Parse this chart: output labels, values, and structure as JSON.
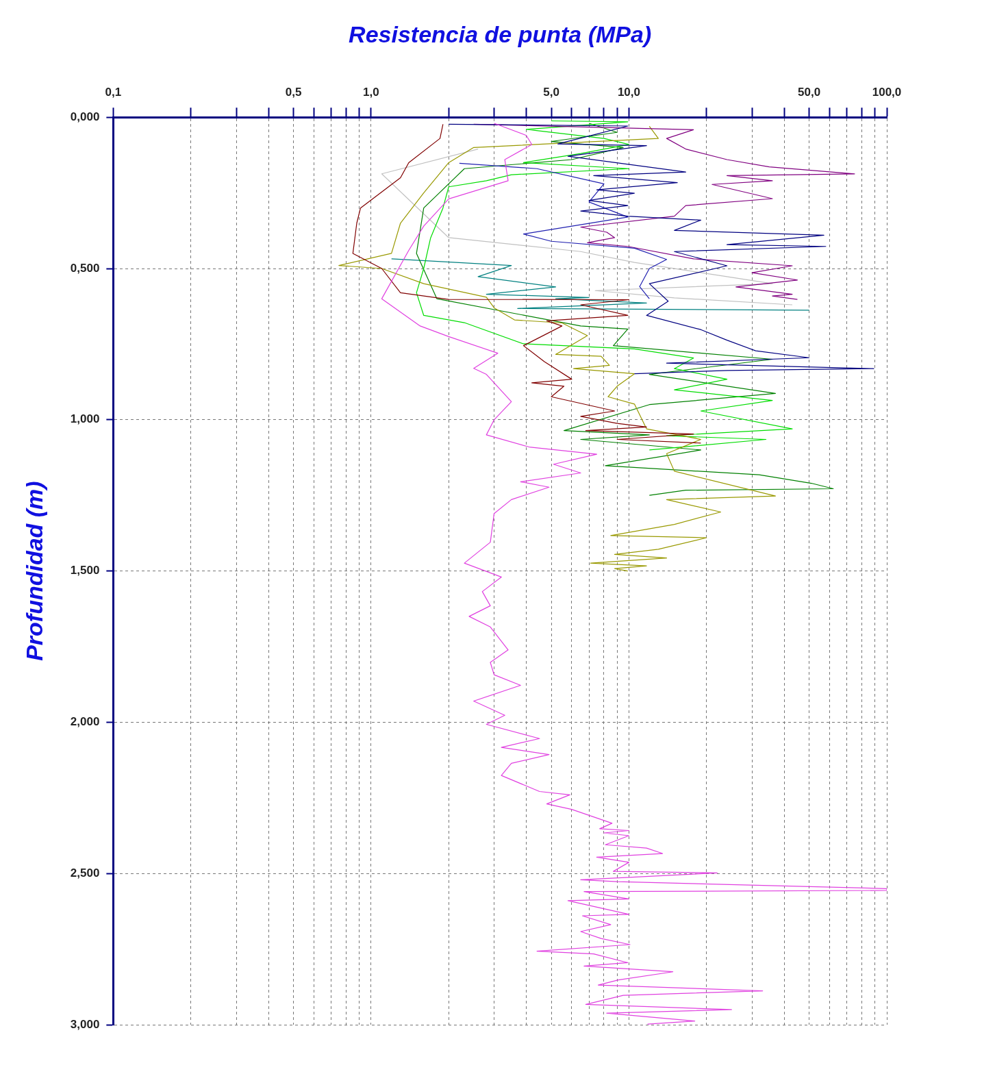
{
  "chart_data": {
    "type": "line",
    "xlabel": "Resistencia de punta (MPa)",
    "ylabel": "Profundidad (m)",
    "xlim": [
      0.1,
      100
    ],
    "ylim": [
      3,
      0
    ],
    "xticks": [
      {
        "value": 0.1,
        "label": "0,1"
      },
      {
        "value": 0.2,
        "label": null
      },
      {
        "value": 0.3,
        "label": null
      },
      {
        "value": 0.4,
        "label": null
      },
      {
        "value": 0.5,
        "label": "0,5"
      },
      {
        "value": 0.6,
        "label": null
      },
      {
        "value": 0.7,
        "label": null
      },
      {
        "value": 0.8,
        "label": null
      },
      {
        "value": 0.9,
        "label": null
      },
      {
        "value": 1,
        "label": "1,0"
      },
      {
        "value": 2,
        "label": null
      },
      {
        "value": 3,
        "label": null
      },
      {
        "value": 4,
        "label": null
      },
      {
        "value": 5,
        "label": "5,0"
      },
      {
        "value": 6,
        "label": null
      },
      {
        "value": 7,
        "label": null
      },
      {
        "value": 8,
        "label": null
      },
      {
        "value": 9,
        "label": null
      },
      {
        "value": 10,
        "label": "10,0"
      },
      {
        "value": 20,
        "label": null
      },
      {
        "value": 30,
        "label": null
      },
      {
        "value": 40,
        "label": null
      },
      {
        "value": 50,
        "label": "50,0"
      },
      {
        "value": 60,
        "label": null
      },
      {
        "value": 70,
        "label": null
      },
      {
        "value": 80,
        "label": null
      },
      {
        "value": 90,
        "label": null
      },
      {
        "value": 100,
        "label": "100,0"
      }
    ],
    "yticks": [
      {
        "value": 0,
        "label": "0,000"
      },
      {
        "value": 0.5,
        "label": "0,500"
      },
      {
        "value": 1,
        "label": "1,000"
      },
      {
        "value": 1.5,
        "label": "1,500"
      },
      {
        "value": 2,
        "label": "2,000"
      },
      {
        "value": 2.5,
        "label": "2,500"
      },
      {
        "value": 3,
        "label": "3,000"
      }
    ],
    "grid": true,
    "log": "x",
    "marker": "none",
    "line_style": "solid",
    "series": [
      {
        "color": "#e040e0",
        "x": [
          3,
          4,
          4.2,
          3.3,
          3.4,
          2,
          1.6,
          1.4,
          1.1,
          1.55,
          2,
          3.1,
          2.5,
          2.8,
          3.5,
          3,
          2.8,
          4.1,
          7.5,
          5.1,
          6.5,
          3.8,
          4.9,
          3.5,
          3,
          2.9,
          2.3,
          3.2,
          2.7,
          2.9,
          2.4,
          2.9,
          3.4,
          2.9,
          3,
          3.8,
          2.5,
          3.3,
          2.8,
          4.5,
          3.2,
          4.9,
          3.5,
          3.2,
          4.5,
          5.9,
          4.8,
          6,
          8.6,
          7.7,
          10,
          8,
          10,
          8.1,
          11.7,
          13.5,
          7.5,
          10,
          8.7,
          22,
          6.5,
          9,
          100,
          100,
          6.7,
          10,
          5.8,
          10,
          6.6,
          8.5,
          6.5,
          7.8,
          10.1,
          4.4,
          7.3,
          9.9,
          6.7,
          14.8,
          9.1,
          7.6,
          33,
          9.5,
          6.8,
          25,
          8.2,
          18,
          11.8
        ],
        "values": [
          0.02,
          0.06,
          0.09,
          0.14,
          0.21,
          0.27,
          0.36,
          0.44,
          0.6,
          0.69,
          0.725,
          0.78,
          0.83,
          0.85,
          0.94,
          1.0,
          1.05,
          1.09,
          1.114,
          1.147,
          1.176,
          1.205,
          1.223,
          1.264,
          1.31,
          1.405,
          1.474,
          1.52,
          1.568,
          1.615,
          1.65,
          1.685,
          1.761,
          1.802,
          1.843,
          1.878,
          1.93,
          1.977,
          2.007,
          2.054,
          2.083,
          2.107,
          2.136,
          2.176,
          2.229,
          2.24,
          2.27,
          2.288,
          2.334,
          2.352,
          2.358,
          2.366,
          2.375,
          2.405,
          2.416,
          2.434,
          2.446,
          2.463,
          2.493,
          2.498,
          2.521,
          2.527,
          2.55,
          2.556,
          2.56,
          2.584,
          2.59,
          2.635,
          2.64,
          2.669,
          2.692,
          2.715,
          2.735,
          2.757,
          2.766,
          2.795,
          2.806,
          2.825,
          2.852,
          2.869,
          2.888,
          2.903,
          2.933,
          2.95,
          2.962,
          2.988,
          2.998
        ]
      },
      {
        "color": "#000080",
        "x": [
          2,
          9.9,
          7.3,
          5.3,
          11.7,
          5.8,
          16.6,
          7.3,
          15.4,
          7.5,
          10.5,
          7,
          9.9,
          6.5,
          9.9,
          19,
          15,
          57,
          24,
          58,
          15,
          24,
          12,
          14.2,
          11.7,
          19,
          24,
          31,
          50,
          14,
          89,
          24,
          10.5
        ],
        "values": [
          0.023,
          0.029,
          0.058,
          0.088,
          0.094,
          0.129,
          0.181,
          0.193,
          0.216,
          0.24,
          0.251,
          0.275,
          0.292,
          0.31,
          0.327,
          0.34,
          0.374,
          0.39,
          0.421,
          0.427,
          0.444,
          0.491,
          0.55,
          0.608,
          0.655,
          0.702,
          0.737,
          0.772,
          0.795,
          0.813,
          0.831,
          0.837,
          0.848
        ]
      },
      {
        "color": "#2020b0",
        "x": [
          2.2,
          4.4,
          8,
          7,
          9.9,
          3.9,
          5,
          10.5,
          14,
          12,
          11,
          12
        ],
        "values": [
          0.152,
          0.17,
          0.22,
          0.28,
          0.33,
          0.386,
          0.41,
          0.433,
          0.47,
          0.5,
          0.56,
          0.6
        ]
      },
      {
        "color": "#800080",
        "x": [
          2.5,
          17.8,
          14,
          16.6,
          24,
          35,
          75,
          24,
          36,
          21,
          36,
          16.6,
          15,
          6.5,
          8.2,
          8.8,
          6.9,
          9.9,
          17.8,
          43,
          30,
          45,
          26,
          43,
          36,
          45
        ],
        "values": [
          0.023,
          0.041,
          0.07,
          0.105,
          0.14,
          0.164,
          0.187,
          0.193,
          0.21,
          0.222,
          0.269,
          0.292,
          0.327,
          0.363,
          0.38,
          0.398,
          0.415,
          0.427,
          0.468,
          0.491,
          0.514,
          0.538,
          0.561,
          0.585,
          0.591,
          0.602
        ]
      },
      {
        "color": "#800000",
        "x": [
          1.9,
          1.85,
          1.4,
          1.3,
          0.91,
          0.88,
          0.85,
          1.1,
          1.3,
          2,
          10,
          6.5,
          9.9,
          4.8,
          5.5,
          3.9,
          4.7,
          6,
          4.2,
          5.6,
          5,
          8.8,
          6.5,
          9,
          11.7,
          6.8,
          17.8,
          9,
          19
        ],
        "values": [
          0.023,
          0.07,
          0.15,
          0.2,
          0.3,
          0.35,
          0.45,
          0.5,
          0.58,
          0.602,
          0.603,
          0.62,
          0.655,
          0.673,
          0.69,
          0.755,
          0.808,
          0.866,
          0.878,
          0.889,
          0.924,
          0.971,
          0.989,
          1.012,
          1.024,
          1.036,
          1.047,
          1.065,
          1.077
        ]
      },
      {
        "color": "#999900",
        "x": [
          12,
          13,
          2.5,
          2,
          1.6,
          1.3,
          1.2,
          0.75,
          1.1,
          1.6,
          2.8,
          3,
          3.6,
          5.5,
          6.9,
          5.2,
          7.8,
          8.4,
          6.1,
          10.5,
          9,
          8.3,
          10.5,
          11.7,
          19,
          14,
          15,
          37,
          14,
          22.7,
          15,
          8.5,
          20,
          13,
          8.8,
          14,
          7.1,
          11.7,
          8.8,
          9.9
        ],
        "values": [
          0.03,
          0.07,
          0.1,
          0.15,
          0.25,
          0.35,
          0.45,
          0.49,
          0.5,
          0.55,
          0.595,
          0.63,
          0.67,
          0.68,
          0.722,
          0.784,
          0.79,
          0.82,
          0.831,
          0.848,
          0.889,
          0.924,
          0.948,
          1.03,
          1.065,
          1.112,
          1.17,
          1.252,
          1.264,
          1.305,
          1.346,
          1.383,
          1.39,
          1.428,
          1.445,
          1.457,
          1.474,
          1.483,
          1.492,
          1.5
        ]
      },
      {
        "color": "#00dd00",
        "x": [
          5,
          9.9,
          4,
          8,
          10,
          6.5,
          3.9,
          10,
          3.5,
          2.8,
          2,
          1.9,
          1.7,
          1.6,
          1.5,
          1.6,
          2.3,
          3.9,
          10.5,
          17.8,
          15,
          24,
          15,
          36,
          19,
          43,
          14,
          34,
          12
        ],
        "values": [
          0.012,
          0.015,
          0.04,
          0.07,
          0.09,
          0.12,
          0.15,
          0.17,
          0.19,
          0.21,
          0.23,
          0.3,
          0.4,
          0.5,
          0.58,
          0.655,
          0.679,
          0.749,
          0.766,
          0.796,
          0.831,
          0.866,
          0.901,
          0.936,
          0.971,
          1.03,
          1.053,
          1.065,
          1.1
        ]
      },
      {
        "color": "#008000",
        "x": [
          7,
          9,
          5,
          9.5,
          6,
          2.3,
          1.6,
          1.5,
          1.8,
          6.5,
          9.9,
          8.7,
          36,
          12,
          37,
          12,
          5.6,
          12,
          6.5,
          19,
          8.1,
          32,
          51,
          62,
          16.6,
          12
        ],
        "values": [
          0.02,
          0.05,
          0.08,
          0.1,
          0.14,
          0.17,
          0.3,
          0.45,
          0.6,
          0.69,
          0.7,
          0.755,
          0.8,
          0.85,
          0.913,
          0.95,
          1.036,
          1.05,
          1.065,
          1.1,
          1.152,
          1.182,
          1.21,
          1.228,
          1.233,
          1.25
        ]
      },
      {
        "color": "#008080",
        "x": [
          1.2,
          3.5,
          2.6,
          5.2,
          2.8,
          7,
          5.2,
          11.7,
          3.7,
          50
        ],
        "values": [
          0.468,
          0.49,
          0.527,
          0.561,
          0.585,
          0.596,
          0.6,
          0.614,
          0.632,
          0.638
        ]
      },
      {
        "color": "#c0c0c0",
        "x": [
          2.6,
          1.1,
          2,
          6.5,
          10.5,
          24,
          36,
          7.4,
          15,
          43
        ],
        "values": [
          0.105,
          0.187,
          0.398,
          0.444,
          0.48,
          0.527,
          0.55,
          0.573,
          0.597,
          0.62
        ]
      }
    ]
  }
}
